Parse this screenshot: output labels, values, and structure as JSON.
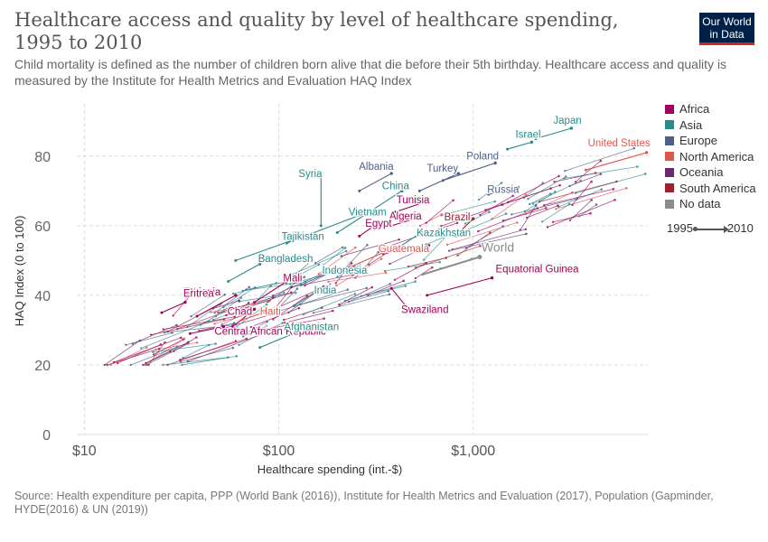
{
  "title": "Healthcare access and quality by level of healthcare spending, 1995 to 2010",
  "subtitle": "Child mortality is defined as the number of children born alive that die before their 5th birthday. Healthcare access and quality is measured by the Institute for Health Metrics and Evaluation HAQ Index",
  "logo": {
    "line1": "Our World",
    "line2": "in Data"
  },
  "source": "Source: Health expenditure per capita, PPP (World Bank (2016)), Institute for Health Metrics and Evaluation (2017), Population (Gapminder, HYDE(2016) & UN (2019))",
  "time_legend": {
    "start": "1995",
    "end": "2010"
  },
  "legend": [
    {
      "label": "Africa",
      "color": "#a2005a"
    },
    {
      "label": "Asia",
      "color": "#2a8a8a"
    },
    {
      "label": "Europe",
      "color": "#4c5f86"
    },
    {
      "label": "North America",
      "color": "#e0574c"
    },
    {
      "label": "Oceania",
      "color": "#6a2a6e"
    },
    {
      "label": "South America",
      "color": "#a02030"
    },
    {
      "label": "No data",
      "color": "#8c8c8c"
    }
  ],
  "chart_data": {
    "type": "scatter",
    "subtype": "connected-scatter-1995-to-2010",
    "xlabel": "Healthcare spending (int.-$)",
    "ylabel": "HAQ Index (0 to 100)",
    "x_scale": "log",
    "xlim": [
      7,
      8000
    ],
    "ylim": [
      0,
      95
    ],
    "x_ticks": [
      {
        "value": 10,
        "label": "$10"
      },
      {
        "value": 100,
        "label": "$100"
      },
      {
        "value": 1000,
        "label": "$1,000"
      }
    ],
    "y_ticks": [
      0,
      20,
      40,
      60,
      80
    ],
    "grid": true,
    "countries": [
      {
        "name": "Japan",
        "region": "Asia",
        "x0": 2100,
        "y0": 85,
        "x1": 3200,
        "y1": 88
      },
      {
        "name": "Israel",
        "region": "Asia",
        "x0": 1500,
        "y0": 82,
        "x1": 2000,
        "y1": 84
      },
      {
        "name": "United States",
        "region": "North America",
        "x0": 3800,
        "y0": 76,
        "x1": 7800,
        "y1": 81
      },
      {
        "name": "Syria",
        "region": "Asia",
        "x0": 165,
        "y0": 60,
        "x1": 165,
        "y1": 74
      },
      {
        "name": "Albania",
        "region": "Europe",
        "x0": 260,
        "y0": 70,
        "x1": 380,
        "y1": 75
      },
      {
        "name": "Poland",
        "region": "Europe",
        "x0": 700,
        "y0": 73,
        "x1": 1300,
        "y1": 78
      },
      {
        "name": "Turkey",
        "region": "Europe",
        "x0": 530,
        "y0": 70,
        "x1": 840,
        "y1": 75
      },
      {
        "name": "China",
        "region": "Asia",
        "x0": 200,
        "y0": 58,
        "x1": 430,
        "y1": 70
      },
      {
        "name": "Russia",
        "region": "Europe",
        "x0": 1200,
        "y0": 69,
        "x1": 1700,
        "y1": 71
      },
      {
        "name": "Tunisia",
        "region": "Africa",
        "x0": 400,
        "y0": 64,
        "x1": 580,
        "y1": 67
      },
      {
        "name": "Vietnam",
        "region": "Asia",
        "x0": 110,
        "y0": 55,
        "x1": 260,
        "y1": 63
      },
      {
        "name": "Algeria",
        "region": "Africa",
        "x0": 380,
        "y0": 60,
        "x1": 500,
        "y1": 62
      },
      {
        "name": "Brazil",
        "region": "South America",
        "x0": 810,
        "y0": 57,
        "x1": 1000,
        "y1": 62
      },
      {
        "name": "Egypt",
        "region": "Africa",
        "x0": 260,
        "y0": 57,
        "x1": 310,
        "y1": 60
      },
      {
        "name": "Kazakhstan",
        "region": "Asia",
        "x0": 420,
        "y0": 54,
        "x1": 540,
        "y1": 58
      },
      {
        "name": "Tajikistan",
        "region": "Asia",
        "x0": 60,
        "y0": 50,
        "x1": 120,
        "y1": 56
      },
      {
        "name": "Guatemala",
        "region": "North America",
        "x0": 230,
        "y0": 48,
        "x1": 370,
        "y1": 53
      },
      {
        "name": "World",
        "region": "No data",
        "x0": 550,
        "y0": 46,
        "x1": 1080,
        "y1": 51
      },
      {
        "name": "Bangladesh",
        "region": "Asia",
        "x0": 55,
        "y0": 44,
        "x1": 80,
        "y1": 49
      },
      {
        "name": "Indonesia",
        "region": "Asia",
        "x0": 130,
        "y0": 43,
        "x1": 190,
        "y1": 47
      },
      {
        "name": "Mali",
        "region": "Africa",
        "x0": 75,
        "y0": 38,
        "x1": 110,
        "y1": 44
      },
      {
        "name": "Equatorial Guinea",
        "region": "Africa",
        "x0": 580,
        "y0": 40,
        "x1": 1250,
        "y1": 45
      },
      {
        "name": "Ethiopia",
        "region": "Africa",
        "x0": 38,
        "y0": 34,
        "x1": 60,
        "y1": 40
      },
      {
        "name": "India",
        "region": "Asia",
        "x0": 120,
        "y0": 37,
        "x1": 155,
        "y1": 41
      },
      {
        "name": "Eritrea",
        "region": "Africa",
        "x0": 25,
        "y0": 35,
        "x1": 33,
        "y1": 38
      },
      {
        "name": "Swaziland",
        "region": "Africa",
        "x0": 380,
        "y0": 42,
        "x1": 450,
        "y1": 37
      },
      {
        "name": "Chad",
        "region": "Africa",
        "x0": 58,
        "y0": 31,
        "x1": 75,
        "y1": 36
      },
      {
        "name": "Haiti",
        "region": "North America",
        "x0": 65,
        "y0": 33,
        "x1": 95,
        "y1": 36
      },
      {
        "name": "Central African Republic",
        "region": "Africa",
        "x0": 35,
        "y0": 29,
        "x1": 52,
        "y1": 31
      },
      {
        "name": "Afghanistan",
        "region": "Asia",
        "x0": 80,
        "y0": 25,
        "x1": 160,
        "y1": 32
      }
    ]
  }
}
